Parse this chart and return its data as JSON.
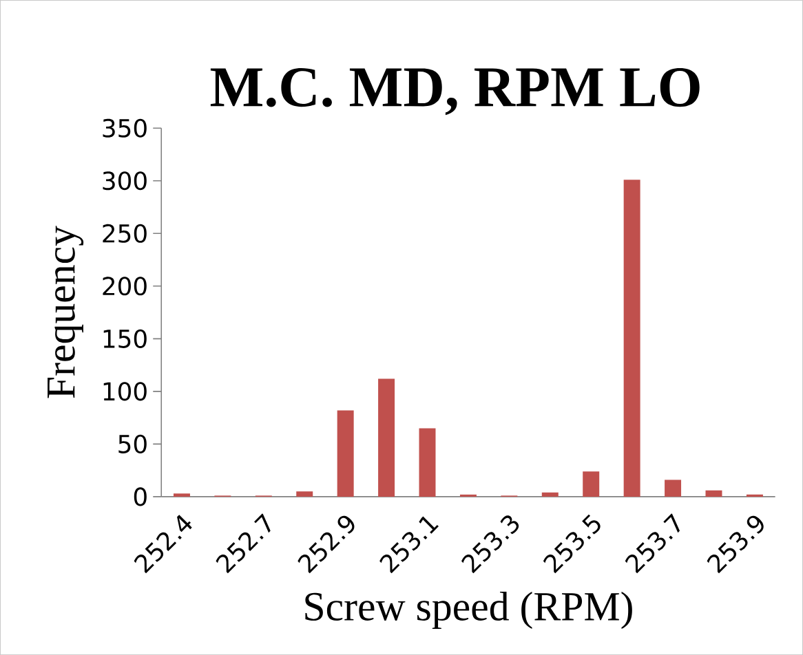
{
  "chart_data": {
    "type": "bar",
    "title": "M.C. MD, RPM LO",
    "xlabel": "Screw speed (RPM)",
    "ylabel": "Frequency",
    "categories": [
      "252.4",
      null,
      "252.7",
      null,
      "252.9",
      null,
      "253.1",
      null,
      "253.3",
      null,
      "253.5",
      null,
      "253.7",
      null,
      "253.9"
    ],
    "values": [
      3,
      1,
      1,
      5,
      82,
      112,
      65,
      2,
      1,
      4,
      24,
      301,
      16,
      6,
      2
    ],
    "color": "#c0504d",
    "ylim": [
      0,
      350
    ],
    "yticks": [
      0,
      50,
      100,
      150,
      200,
      250,
      300,
      350
    ],
    "grid": false
  }
}
